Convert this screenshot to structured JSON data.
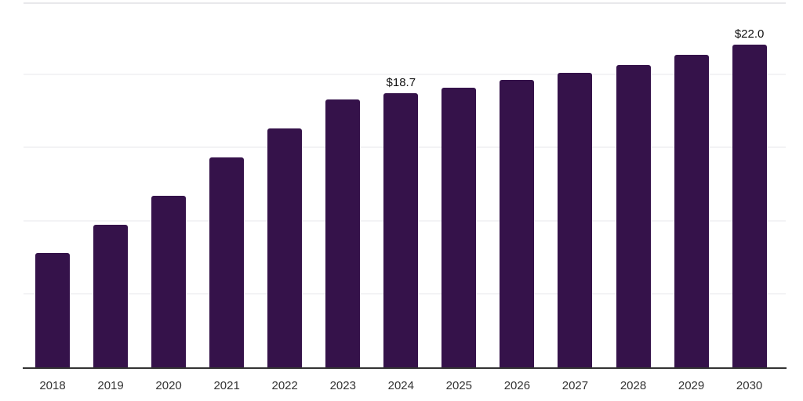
{
  "chart_data": {
    "type": "bar",
    "title": "",
    "xlabel": "",
    "ylabel": "",
    "categories": [
      "2018",
      "2019",
      "2020",
      "2021",
      "2022",
      "2023",
      "2024",
      "2025",
      "2026",
      "2027",
      "2028",
      "2029",
      "2030"
    ],
    "values": [
      7.8,
      9.7,
      11.7,
      14.3,
      16.3,
      18.3,
      18.7,
      19.1,
      19.6,
      20.1,
      20.6,
      21.3,
      22.0
    ],
    "annotations": [
      {
        "category_index": 6,
        "text": "$18.7"
      },
      {
        "category_index": 12,
        "text": "$22.0"
      }
    ],
    "unit_prefix": "$",
    "ylim": [
      0,
      24.9
    ],
    "gridline_values": [
      5,
      10,
      15,
      20
    ],
    "grid": "horizontal",
    "legend": "none",
    "colors": {
      "bar": "#35124a",
      "axis_line": "#333333",
      "gridline": "#f3f3f5",
      "plot_top_border": "#e8e8eb",
      "tick_label": "#333333",
      "data_label": "#111111",
      "background": "#ffffff"
    }
  }
}
